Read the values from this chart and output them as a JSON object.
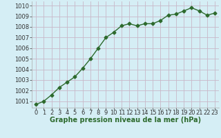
{
  "x": [
    0,
    1,
    2,
    3,
    4,
    5,
    6,
    7,
    8,
    9,
    10,
    11,
    12,
    13,
    14,
    15,
    16,
    17,
    18,
    19,
    20,
    21,
    22,
    23
  ],
  "y": [
    1000.7,
    1001.0,
    1001.6,
    1002.3,
    1002.8,
    1003.3,
    1004.1,
    1005.0,
    1006.0,
    1007.0,
    1007.5,
    1008.1,
    1008.3,
    1008.1,
    1008.3,
    1008.3,
    1008.6,
    1009.1,
    1009.2,
    1009.5,
    1009.8,
    1009.5,
    1009.1,
    1009.3
  ],
  "xlim": [
    -0.5,
    23.5
  ],
  "ylim": [
    1000.4,
    1010.4
  ],
  "yticks": [
    1001,
    1002,
    1003,
    1004,
    1005,
    1006,
    1007,
    1008,
    1009,
    1010
  ],
  "xticks": [
    0,
    1,
    2,
    3,
    4,
    5,
    6,
    7,
    8,
    9,
    10,
    11,
    12,
    13,
    14,
    15,
    16,
    17,
    18,
    19,
    20,
    21,
    22,
    23
  ],
  "line_color": "#2d6a2d",
  "marker": "D",
  "marker_size": 2.5,
  "bg_color": "#d5eef5",
  "grid_color": "#c8b8c8",
  "xlabel": "Graphe pression niveau de la mer (hPa)",
  "xlabel_color": "#2d6a2d",
  "xlabel_fontsize": 7.0,
  "tick_fontsize": 6.0,
  "line_width": 1.0
}
